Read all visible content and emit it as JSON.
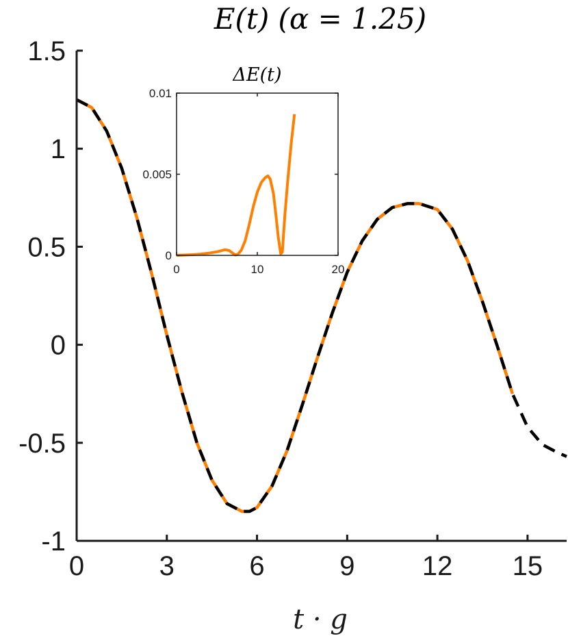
{
  "chart_data": [
    {
      "type": "line",
      "title": "E(t) (α = 1.25)",
      "xlabel": "t · g",
      "ylabel": "",
      "xlim": [
        0,
        16.3
      ],
      "ylim": [
        -1,
        1.5
      ],
      "xticks": [
        "0",
        "3",
        "6",
        "9",
        "12",
        "15"
      ],
      "yticks": [
        "-1",
        "-0.5",
        "0",
        "0.5",
        "1",
        "1.5"
      ],
      "grid": false,
      "series": [
        {
          "color": "#ff7f00",
          "style": "solid",
          "x": [
            0,
            0.5,
            1,
            1.5,
            2,
            2.5,
            3,
            3.5,
            4,
            4.5,
            5,
            5.5,
            5.75,
            6,
            6.5,
            7,
            7.5,
            8,
            8.5,
            9,
            9.5,
            10,
            10.5,
            11,
            11.4,
            12,
            12.5,
            13,
            13.5,
            14,
            14.5
          ],
          "y": [
            1.25,
            1.21,
            1.09,
            0.9,
            0.65,
            0.36,
            0.05,
            -0.24,
            -0.5,
            -0.69,
            -0.81,
            -0.85,
            -0.85,
            -0.83,
            -0.72,
            -0.54,
            -0.31,
            -0.07,
            0.16,
            0.37,
            0.53,
            0.64,
            0.7,
            0.72,
            0.72,
            0.69,
            0.59,
            0.43,
            0.22,
            -0.01,
            -0.25
          ]
        },
        {
          "color": "#000000",
          "style": "dashed",
          "x": [
            0,
            0.5,
            1,
            1.5,
            2,
            2.5,
            3,
            3.5,
            4,
            4.5,
            5,
            5.5,
            5.75,
            6,
            6.5,
            7,
            7.5,
            8,
            8.5,
            9,
            9.5,
            10,
            10.5,
            11,
            11.4,
            12,
            12.5,
            13,
            13.5,
            14,
            14.5,
            15,
            15.5,
            16,
            16.3
          ],
          "y": [
            1.25,
            1.21,
            1.09,
            0.9,
            0.65,
            0.36,
            0.05,
            -0.24,
            -0.5,
            -0.69,
            -0.81,
            -0.85,
            -0.85,
            -0.83,
            -0.72,
            -0.54,
            -0.31,
            -0.07,
            0.16,
            0.37,
            0.53,
            0.64,
            0.7,
            0.72,
            0.72,
            0.69,
            0.59,
            0.43,
            0.22,
            -0.01,
            -0.25,
            -0.42,
            -0.51,
            -0.55,
            -0.57
          ]
        }
      ]
    },
    {
      "type": "line",
      "title": "ΔE(t)",
      "xlabel": "",
      "ylabel": "",
      "xlim": [
        0,
        20
      ],
      "ylim": [
        0,
        0.01
      ],
      "xticks": [
        "0",
        "10",
        "20"
      ],
      "yticks": [
        "0",
        "0.005",
        "0.01"
      ],
      "grid": false,
      "series": [
        {
          "color": "#ff7f00",
          "style": "solid",
          "x": [
            0,
            1,
            2,
            3,
            4,
            5,
            5.5,
            6,
            6.5,
            7,
            7.3,
            7.6,
            8,
            8.5,
            9,
            9.5,
            10,
            10.5,
            11,
            11.3,
            11.6,
            12,
            12.3,
            12.6,
            12.9,
            13.1,
            13.4,
            13.8,
            14.2,
            14.6
          ],
          "y": [
            0,
            2e-05,
            4e-05,
            8e-05,
            0.00014,
            0.00022,
            0.00028,
            0.00035,
            0.0003,
            0.00012,
            2e-05,
            8e-05,
            0.0003,
            0.0009,
            0.0019,
            0.003,
            0.0039,
            0.0045,
            0.0048,
            0.0049,
            0.0047,
            0.0038,
            0.0025,
            0.0011,
            0.0001,
            0.0002,
            0.0024,
            0.0048,
            0.0069,
            0.0087
          ]
        }
      ]
    }
  ]
}
